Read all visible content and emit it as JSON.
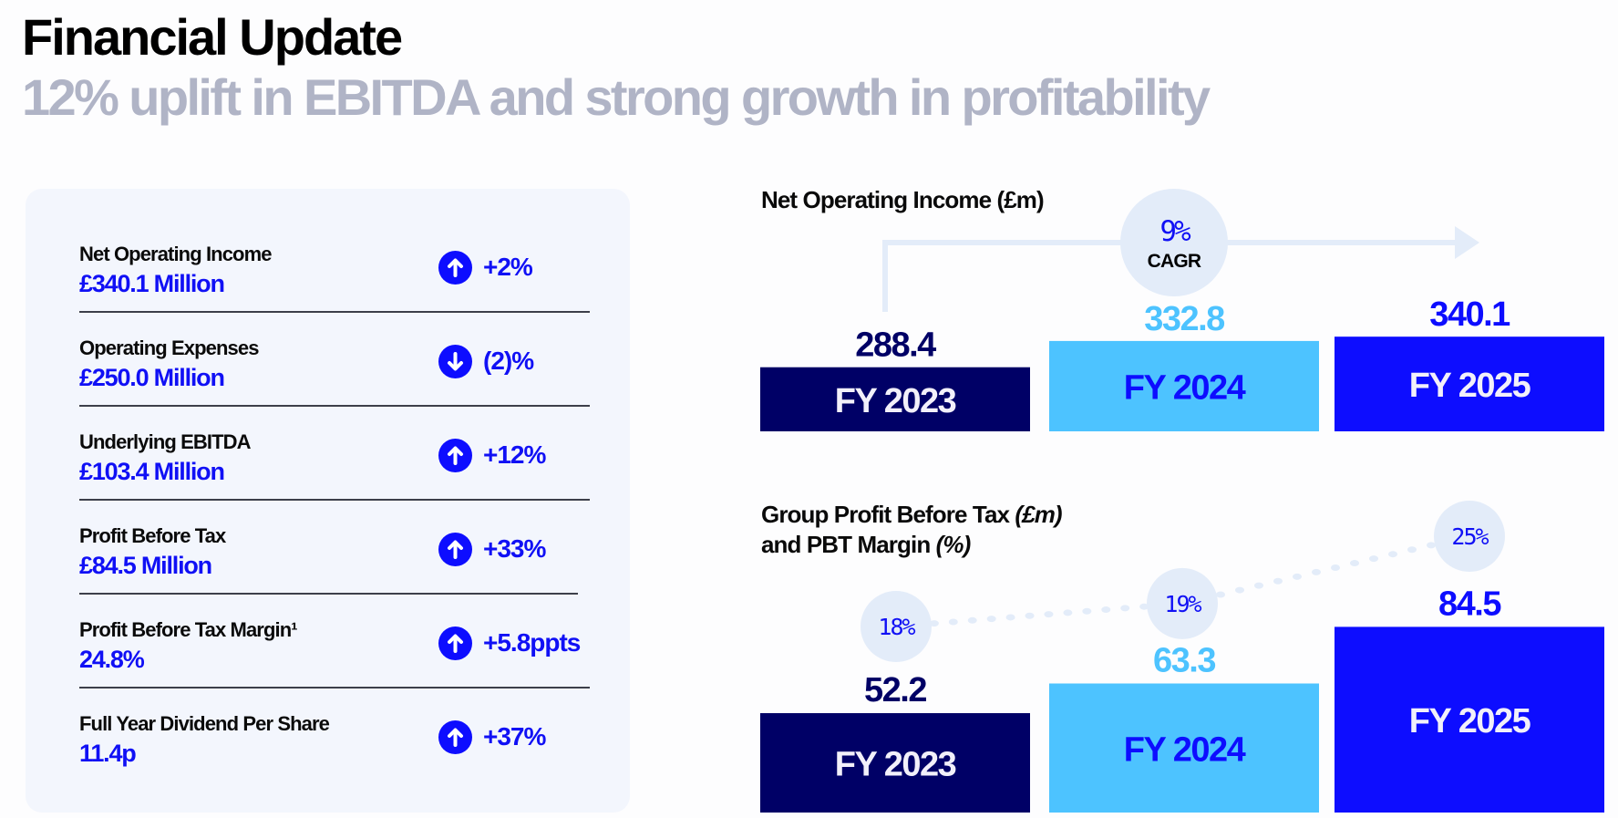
{
  "header": {
    "title": "Financial Update",
    "subtitle": "12% uplift in EBITDA and strong growth in profitability"
  },
  "kpis": [
    {
      "label": "Net Operating Income",
      "value": "£340.1 Million",
      "direction": "up",
      "icon": "arrow-up-circle-icon",
      "change": "+2%"
    },
    {
      "label": "Operating Expenses",
      "value": "£250.0 Million",
      "direction": "down",
      "icon": "arrow-down-circle-icon",
      "change": "(2)%"
    },
    {
      "label": "Underlying EBITDA",
      "value": "£103.4 Million",
      "direction": "up",
      "icon": "arrow-up-circle-icon",
      "change": "+12%"
    },
    {
      "label": "Profit Before Tax",
      "value": "£84.5 Million",
      "direction": "up",
      "icon": "arrow-up-circle-icon",
      "change": "+33%"
    },
    {
      "label": "Profit Before Tax Margin¹",
      "value": "24.8%",
      "direction": "up",
      "icon": "arrow-up-circle-icon",
      "change": "+5.8ppts"
    },
    {
      "label": "Full Year Dividend Per Share",
      "value": "11.4p",
      "direction": "up",
      "icon": "arrow-up-circle-icon",
      "change": "+37%"
    }
  ],
  "colors": {
    "navy": "#000066",
    "light_blue": "#4dc3ff",
    "bright_blue": "#0d0dff",
    "bubble": "#e3ecf9",
    "subtitle_grey": "#b0b4c6",
    "card_bg": "#f3f6fd"
  },
  "chart_data": [
    {
      "type": "bar",
      "title": "Net Operating Income (£m)",
      "categories": [
        "FY 2023",
        "FY 2024",
        "FY 2025"
      ],
      "values": [
        288.4,
        332.8,
        340.1
      ],
      "value_labels": [
        "288.4",
        "332.8",
        "340.1"
      ],
      "bar_colors": [
        "#000066",
        "#4dc3ff",
        "#0d0dff"
      ],
      "category_label_colors": [
        "#f2f0fa",
        "#0d0dff",
        "#f2f0fa"
      ],
      "value_label_colors": [
        "#000066",
        "#4dc3ff",
        "#0d0dff"
      ],
      "ylim": [
        180,
        345
      ],
      "annotation": {
        "value": "9%",
        "label": "CAGR"
      },
      "xlabel": "",
      "ylabel": "",
      "grid": false
    },
    {
      "type": "bar",
      "title_parts": [
        "Group Profit Before Tax ",
        "(£m)",
        "and PBT Margin ",
        "(%)"
      ],
      "title": "Group Profit Before Tax (£m) and PBT Margin (%)",
      "categories": [
        "FY 2023",
        "FY 2024",
        "FY 2025"
      ],
      "values": [
        52.2,
        63.3,
        84.5
      ],
      "value_labels": [
        "52.2",
        "63.3",
        "84.5"
      ],
      "bar_colors": [
        "#000066",
        "#4dc3ff",
        "#0d0dff"
      ],
      "category_label_colors": [
        "#f2f0fa",
        "#0d0dff",
        "#f2f0fa"
      ],
      "value_label_colors": [
        "#000066",
        "#4dc3ff",
        "#0d0dff"
      ],
      "ylim": [
        15,
        86
      ],
      "line_series": {
        "name": "PBT Margin (%)",
        "values": [
          18,
          19,
          25
        ],
        "labels": [
          "18%",
          "19%",
          "25%"
        ],
        "ylim": [
          6,
          27
        ],
        "style": "dotted"
      },
      "xlabel": "",
      "ylabel": "",
      "grid": false
    }
  ]
}
